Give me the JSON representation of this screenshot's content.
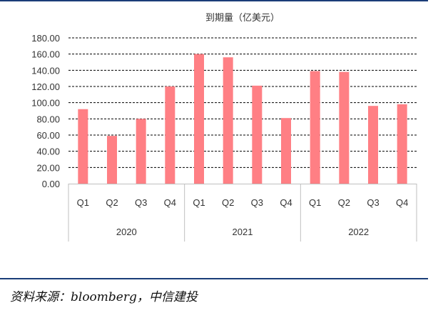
{
  "source_note": "资料来源：bloomberg，中信建投",
  "colors": {
    "bar": "#ff7f84",
    "axis": "#bfbfbf",
    "grid": "#000000",
    "text": "#333333",
    "rule": "#1a3d78"
  },
  "chart_data": {
    "type": "bar",
    "title": "到期量（亿美元）",
    "xlabel": "",
    "ylabel": "",
    "ylim": [
      0,
      180
    ],
    "yticks": [
      "0.00",
      "20.00",
      "40.00",
      "60.00",
      "80.00",
      "100.00",
      "120.00",
      "140.00",
      "160.00",
      "180.00"
    ],
    "grid": true,
    "legend": "none",
    "groups": [
      {
        "label": "2020",
        "categories": [
          "Q1",
          "Q2",
          "Q3",
          "Q4"
        ],
        "values": [
          92,
          59,
          80,
          120
        ]
      },
      {
        "label": "2021",
        "categories": [
          "Q1",
          "Q2",
          "Q3",
          "Q4"
        ],
        "values": [
          160,
          156,
          121,
          81
        ]
      },
      {
        "label": "2022",
        "categories": [
          "Q1",
          "Q2",
          "Q3",
          "Q4"
        ],
        "values": [
          139,
          138,
          96,
          98
        ]
      }
    ]
  }
}
